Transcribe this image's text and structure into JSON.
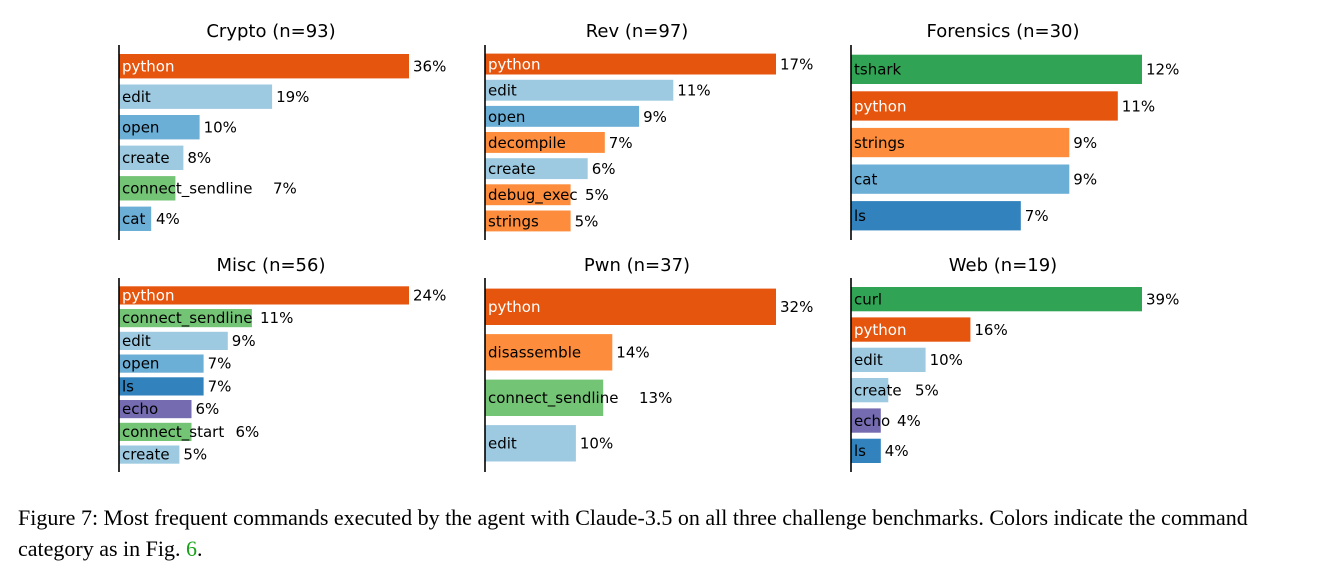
{
  "colors": {
    "python": "#e6550d",
    "edit": "#9ecae1",
    "open": "#6baed6",
    "create": "#9ecae1",
    "connect_sendline": "#74c476",
    "connect_start": "#74c476",
    "cat": "#6baed6",
    "decompile": "#fd8d3c",
    "debug_exec": "#fd8d3c",
    "strings": "#fd8d3c",
    "disassemble": "#fd8d3c",
    "tshark": "#31a354",
    "curl": "#31a354",
    "ls": "#3182bd",
    "echo": "#756bb1",
    "python_label": "#ffffff",
    "dark_label": "#000000"
  },
  "chart_data": [
    {
      "type": "bar",
      "orientation": "horizontal",
      "title": "Crypto (n=93)",
      "categories": [
        "python",
        "edit",
        "open",
        "create",
        "connect_sendline",
        "cat"
      ],
      "values": [
        36,
        19,
        10,
        8,
        7,
        4
      ],
      "value_labels": [
        "36%",
        "19%",
        "10%",
        "8%",
        "7%",
        "4%"
      ],
      "xlim": [
        0,
        36
      ]
    },
    {
      "type": "bar",
      "orientation": "horizontal",
      "title": "Rev (n=97)",
      "categories": [
        "python",
        "edit",
        "open",
        "decompile",
        "create",
        "debug_exec",
        "strings"
      ],
      "values": [
        17,
        11,
        9,
        7,
        6,
        5,
        5
      ],
      "value_labels": [
        "17%",
        "11%",
        "9%",
        "7%",
        "6%",
        "5%",
        "5%"
      ],
      "xlim": [
        0,
        17
      ]
    },
    {
      "type": "bar",
      "orientation": "horizontal",
      "title": "Forensics (n=30)",
      "categories": [
        "tshark",
        "python",
        "strings",
        "cat",
        "ls"
      ],
      "values": [
        12,
        11,
        9,
        9,
        7
      ],
      "value_labels": [
        "12%",
        "11%",
        "9%",
        "9%",
        "7%"
      ],
      "xlim": [
        0,
        12
      ]
    },
    {
      "type": "bar",
      "orientation": "horizontal",
      "title": "Misc (n=56)",
      "categories": [
        "python",
        "connect_sendline",
        "edit",
        "open",
        "ls",
        "echo",
        "connect_start",
        "create"
      ],
      "values": [
        24,
        11,
        9,
        7,
        7,
        6,
        6,
        5
      ],
      "value_labels": [
        "24%",
        "11%",
        "9%",
        "7%",
        "7%",
        "6%",
        "6%",
        "5%"
      ],
      "xlim": [
        0,
        24
      ]
    },
    {
      "type": "bar",
      "orientation": "horizontal",
      "title": "Pwn (n=37)",
      "categories": [
        "python",
        "disassemble",
        "connect_sendline",
        "edit"
      ],
      "values": [
        32,
        14,
        13,
        10
      ],
      "value_labels": [
        "32%",
        "14%",
        "13%",
        "10%"
      ],
      "xlim": [
        0,
        32
      ]
    },
    {
      "type": "bar",
      "orientation": "horizontal",
      "title": "Web (n=19)",
      "categories": [
        "curl",
        "python",
        "edit",
        "create",
        "echo",
        "ls"
      ],
      "values": [
        39,
        16,
        10,
        5,
        4,
        4
      ],
      "value_labels": [
        "39%",
        "16%",
        "10%",
        "5%",
        "4%",
        "4%"
      ],
      "xlim": [
        0,
        39
      ]
    }
  ],
  "caption": {
    "prefix": "Figure 7: Most frequent commands executed by the agent with Claude-3.5 on all three challenge benchmarks. Colors indicate the command category as in Fig. ",
    "figref": "6",
    "suffix": "."
  }
}
